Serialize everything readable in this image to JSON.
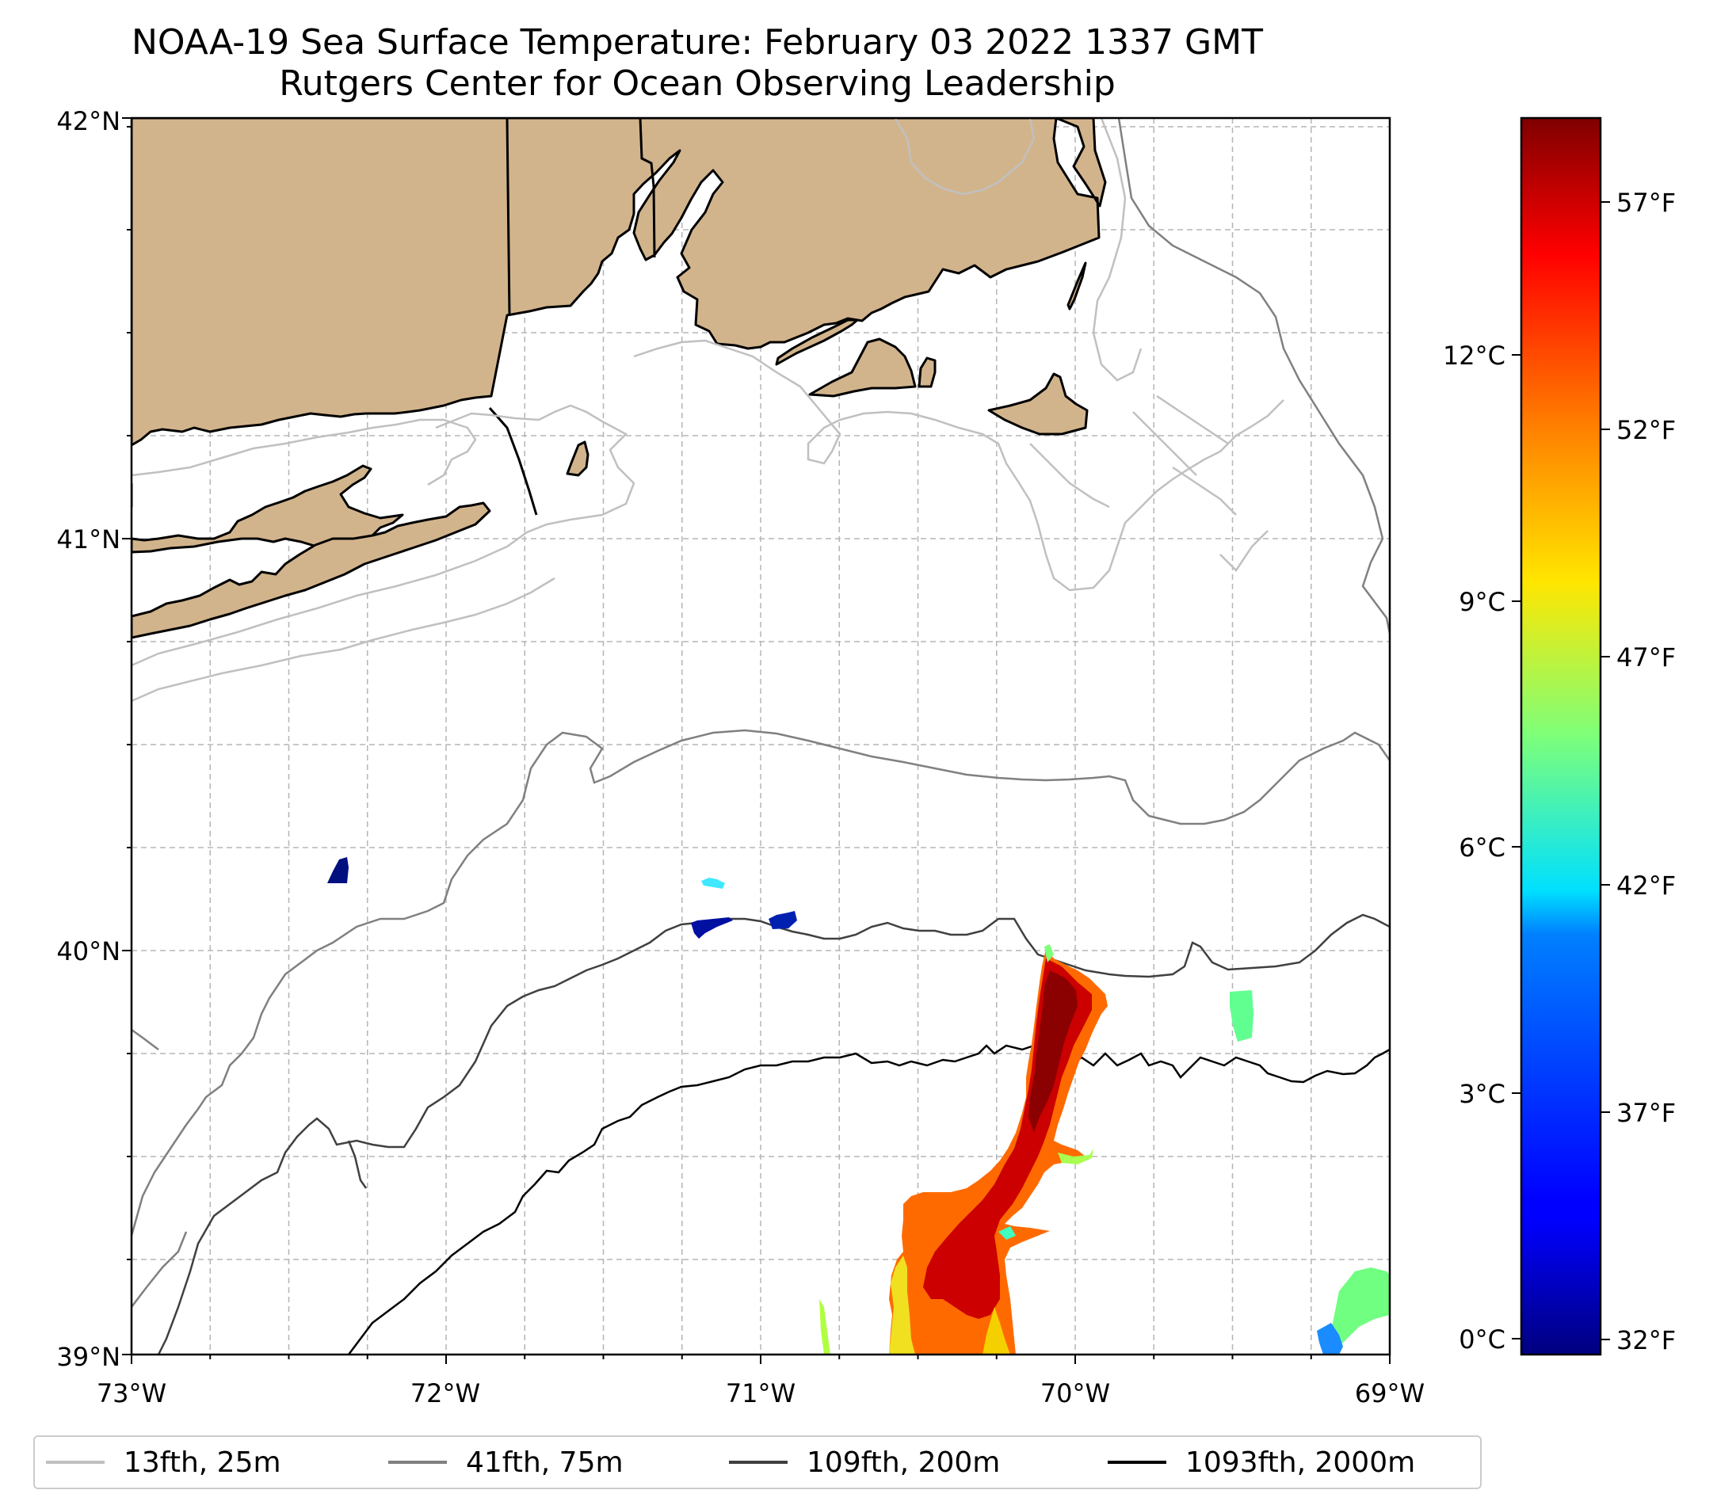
{
  "title": {
    "line1": "NOAA-19 Sea Surface Temperature: February 03 2022 1337 GMT",
    "line2": "Rutgers Center for Ocean Observing Leadership"
  },
  "map": {
    "lat_labels": [
      "42°N",
      "41°N",
      "40°N",
      "39°N"
    ],
    "lon_labels": [
      "73°W",
      "72°W",
      "71°W",
      "70°W",
      "69°W"
    ],
    "land_color": "#d2b48c",
    "coast_color": "#000000",
    "grid_color": "#b0b0b0"
  },
  "colorbar": {
    "celsius_labels": [
      "12°C",
      "9°C",
      "6°C",
      "3°C",
      "0°C"
    ],
    "fahrenheit_labels": [
      "57°F",
      "52°F",
      "47°F",
      "42°F",
      "37°F",
      "32°F"
    ],
    "min_c": -0.2,
    "max_c": 14.9,
    "colormap": "jet"
  },
  "legend": {
    "items": [
      {
        "label": "13fth, 25m",
        "color": "#c0c0c0"
      },
      {
        "label": "41fth, 75m",
        "color": "#808080"
      },
      {
        "label": "109fth, 200m",
        "color": "#404040"
      },
      {
        "label": "1093fth, 2000m",
        "color": "#000000"
      }
    ]
  }
}
